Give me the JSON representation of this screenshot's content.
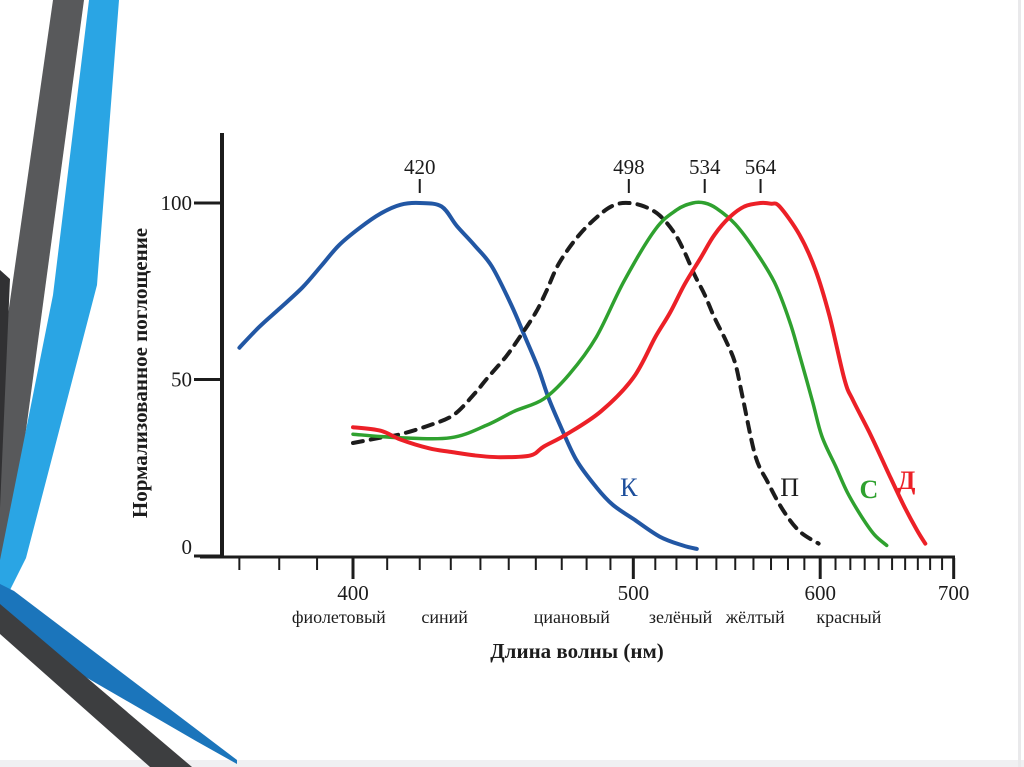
{
  "slide": {
    "background": "#ffffff",
    "bottom_strip_color": "#f0f0f2",
    "right_edge_line_color": "#e9e9eb",
    "decoration_colors": {
      "top_gray_stripe": "#58595b",
      "top_blue_stripe": "#2aa5e4",
      "bend_dark_blue_band": "#1b75bb",
      "bend_dark_gray_band": "#3d3e40",
      "left_edge_black_sliver": "#313133"
    }
  },
  "chart_data": {
    "type": "line",
    "title": "",
    "xlabel": "Длина волны (нм)",
    "ylabel": "Нормализованное поглощение",
    "x_scale_note": "wavelength axis linear in 1/λ (frequency-linear)",
    "xlim": [
      362,
      700
    ],
    "ylim": [
      0,
      100
    ],
    "ink_color": "#1c1c1c",
    "grid": false,
    "y_ticks": [
      {
        "value": 0,
        "label": "0"
      },
      {
        "value": 50,
        "label": "50"
      },
      {
        "value": 100,
        "label": "100"
      }
    ],
    "x_major_ticks": [
      {
        "value": 400,
        "label": "400"
      },
      {
        "value": 500,
        "label": "500"
      },
      {
        "value": 600,
        "label": "600"
      },
      {
        "value": 700,
        "label": "700"
      }
    ],
    "x_minor_ticks": {
      "from": 370,
      "to": 690,
      "step": 10
    },
    "band_labels": [
      {
        "text": "фиолетовый",
        "wavelength": 396
      },
      {
        "text": "синий",
        "wavelength": 428
      },
      {
        "text": "циановый",
        "wavelength": 474
      },
      {
        "text": "зелёный",
        "wavelength": 522
      },
      {
        "text": "жёлтый",
        "wavelength": 561
      },
      {
        "text": "красный",
        "wavelength": 619
      }
    ],
    "series": [
      {
        "name": "К",
        "peak": 420,
        "peak_label": "420",
        "color": "#2257a4",
        "label_color": "#1d4e9b",
        "dashed": false,
        "stroke_width": 4,
        "label_bold": false,
        "label_pos": {
          "wavelength": 498,
          "value": 19.5
        },
        "points": [
          [
            370,
            59
          ],
          [
            375,
            65
          ],
          [
            380,
            70
          ],
          [
            386,
            76
          ],
          [
            391,
            82
          ],
          [
            396,
            88
          ],
          [
            402,
            93
          ],
          [
            408,
            97
          ],
          [
            414,
            99.5
          ],
          [
            420,
            100
          ],
          [
            427,
            99
          ],
          [
            432,
            93.5
          ],
          [
            438,
            88
          ],
          [
            444,
            82
          ],
          [
            451,
            71
          ],
          [
            456,
            62
          ],
          [
            461,
            53
          ],
          [
            465,
            44.5
          ],
          [
            470,
            36
          ],
          [
            476,
            27
          ],
          [
            484,
            19.5
          ],
          [
            491,
            14.5
          ],
          [
            500,
            10.5
          ],
          [
            512,
            5.5
          ],
          [
            523,
            3
          ],
          [
            530,
            2
          ]
        ]
      },
      {
        "name": "П",
        "peak": 498,
        "peak_label": "498",
        "color": "#1c1c1c",
        "label_color": "#1c1c1c",
        "dashed": true,
        "stroke_width": 4,
        "label_bold": false,
        "label_pos": {
          "wavelength": 581,
          "value": 19.5
        },
        "points": [
          [
            400,
            32
          ],
          [
            408,
            33.5
          ],
          [
            414,
            34.5
          ],
          [
            423,
            37
          ],
          [
            431,
            40
          ],
          [
            438,
            46
          ],
          [
            442,
            50
          ],
          [
            449,
            56.5
          ],
          [
            454,
            62
          ],
          [
            460,
            69
          ],
          [
            464,
            75
          ],
          [
            469,
            83
          ],
          [
            477,
            91
          ],
          [
            486,
            97
          ],
          [
            492,
            99.5
          ],
          [
            498,
            100
          ],
          [
            505,
            99
          ],
          [
            512,
            96.5
          ],
          [
            519,
            91.5
          ],
          [
            524,
            86
          ],
          [
            529,
            79.5
          ],
          [
            534,
            74
          ],
          [
            539,
            67.5
          ],
          [
            545,
            61
          ],
          [
            550,
            54.5
          ],
          [
            554,
            45
          ],
          [
            561,
            28.5
          ],
          [
            568,
            21
          ],
          [
            577,
            13
          ],
          [
            587,
            7
          ],
          [
            599,
            3.5
          ]
        ]
      },
      {
        "name": "С",
        "peak": 534,
        "peak_label": "534",
        "color": "#2fa12f",
        "label_color": "#2fa12f",
        "dashed": false,
        "stroke_width": 3.5,
        "label_bold": true,
        "label_pos": {
          "wavelength": 633,
          "value": 19
        },
        "points": [
          [
            400,
            34.5
          ],
          [
            414,
            33.5
          ],
          [
            430,
            33.5
          ],
          [
            442,
            37
          ],
          [
            452,
            41
          ],
          [
            463,
            44.5
          ],
          [
            473,
            51.5
          ],
          [
            484,
            62
          ],
          [
            496,
            78
          ],
          [
            510,
            92.5
          ],
          [
            520,
            98
          ],
          [
            528,
            100
          ],
          [
            534,
            100
          ],
          [
            540,
            98.5
          ],
          [
            550,
            94
          ],
          [
            561,
            86.5
          ],
          [
            572,
            77.5
          ],
          [
            581,
            66.5
          ],
          [
            587,
            57
          ],
          [
            595,
            44
          ],
          [
            601,
            34
          ],
          [
            610,
            25.5
          ],
          [
            618,
            18
          ],
          [
            628,
            11
          ],
          [
            637,
            6
          ],
          [
            646,
            3
          ]
        ]
      },
      {
        "name": "Д",
        "peak": 564,
        "peak_label": "564",
        "color": "#ec2027",
        "label_color": "#ec2027",
        "dashed": false,
        "stroke_width": 4,
        "label_bold": true,
        "label_pos": {
          "wavelength": 661,
          "value": 21.5
        },
        "points": [
          [
            400,
            36.5
          ],
          [
            408,
            35.5
          ],
          [
            414,
            33
          ],
          [
            423,
            30.5
          ],
          [
            430,
            29.5
          ],
          [
            438,
            28.5
          ],
          [
            447,
            28
          ],
          [
            458,
            28.5
          ],
          [
            463,
            31
          ],
          [
            472,
            34.5
          ],
          [
            486,
            41
          ],
          [
            500,
            50.5
          ],
          [
            510,
            62
          ],
          [
            517,
            69
          ],
          [
            524,
            77
          ],
          [
            532,
            84.5
          ],
          [
            539,
            91
          ],
          [
            547,
            96
          ],
          [
            555,
            99
          ],
          [
            564,
            100
          ],
          [
            570,
            99.8
          ],
          [
            575,
            99
          ],
          [
            587,
            91
          ],
          [
            597,
            81
          ],
          [
            606,
            68
          ],
          [
            616,
            50
          ],
          [
            622,
            44
          ],
          [
            634,
            34.5
          ],
          [
            646,
            24.5
          ],
          [
            658,
            15
          ],
          [
            669,
            7.5
          ],
          [
            676,
            3.5
          ]
        ]
      }
    ]
  }
}
